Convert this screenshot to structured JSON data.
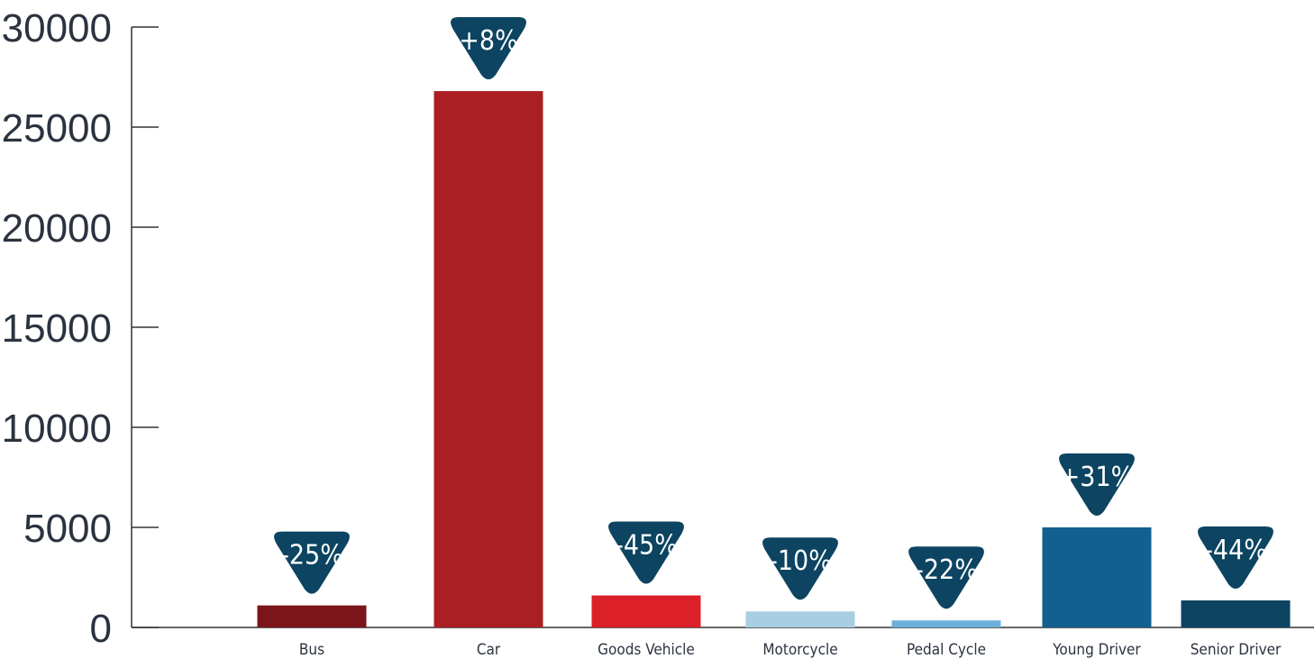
{
  "chart_data": {
    "type": "bar",
    "categories": [
      "Bus",
      "Car",
      "Goods Vehicle",
      "Motorcycle",
      "Pedal Cycle",
      "Young Driver",
      "Senior Driver"
    ],
    "values": [
      1100,
      26800,
      1600,
      800,
      350,
      5000,
      1350
    ],
    "annotations": [
      "-25%",
      "+8%",
      "-45%",
      "-10%",
      "-22%",
      "+31%",
      "-44%"
    ],
    "colors": [
      "#7b1519",
      "#ab1f24",
      "#dc2028",
      "#a9cde3",
      "#6cafdb",
      "#12608f",
      "#0c4461"
    ],
    "badge_color": "#0c4461",
    "yticks": [
      "0",
      "5000",
      "10000",
      "15000",
      "20000",
      "25000",
      "30000"
    ],
    "ylim": [
      0,
      30000
    ],
    "title": "",
    "xlabel": "",
    "ylabel": "",
    "legend": "none",
    "grid": false
  }
}
